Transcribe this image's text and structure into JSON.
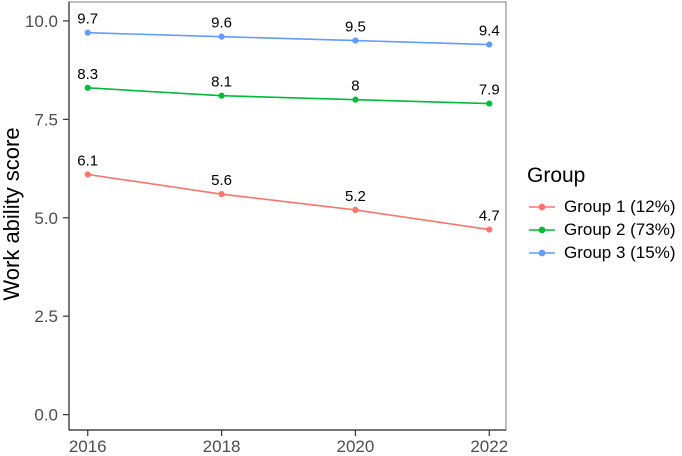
{
  "figure": {
    "background": "#ffffff"
  },
  "chart_data": {
    "type": "line",
    "title": "",
    "xlabel": "",
    "ylabel": "Work ability score",
    "x": [
      2016,
      2018,
      2020,
      2022
    ],
    "x_tick_labels": [
      "2016",
      "2018",
      "2020",
      "2022"
    ],
    "y_ticks": [
      0.0,
      2.5,
      5.0,
      7.5,
      10.0
    ],
    "y_tick_labels": [
      "0.0",
      "2.5",
      "5.0",
      "7.5",
      "10.0"
    ],
    "xlim": [
      2015.72,
      2022.25
    ],
    "ylim": [
      -0.39,
      10.48
    ],
    "grid": "off",
    "legend_position": "right",
    "legend_title": "Group",
    "series": [
      {
        "name": "Group 1 (12%)",
        "color": "#F8766D",
        "values": [
          6.1,
          5.6,
          5.2,
          4.7
        ],
        "point_labels": [
          "6.1",
          "5.6",
          "5.2",
          "4.7"
        ]
      },
      {
        "name": "Group 2 (73%)",
        "color": "#00BA38",
        "values": [
          8.3,
          8.1,
          8.0,
          7.9
        ],
        "point_labels": [
          "8.3",
          "8.1",
          "8",
          "7.9"
        ]
      },
      {
        "name": "Group 3 (15%)",
        "color": "#619CFF",
        "values": [
          9.7,
          9.6,
          9.5,
          9.4
        ],
        "point_labels": [
          "9.7",
          "9.6",
          "9.5",
          "9.4"
        ]
      }
    ],
    "colors": {
      "axis_text": "#4d4d4d",
      "axis_line": "#333333",
      "panel_border": "#999999",
      "data_label_text": "#000000",
      "panel_background": "#ffffff"
    }
  }
}
